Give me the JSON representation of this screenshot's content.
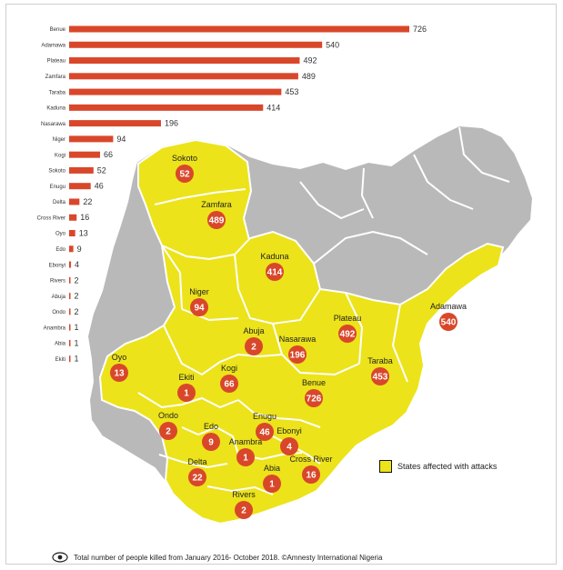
{
  "chart_data": {
    "type": "bar",
    "orientation": "horizontal",
    "categories": [
      "Benue",
      "Adamawa",
      "Plateau",
      "Zamfara",
      "Taraba",
      "Kaduna",
      "Nasarawa",
      "Niger",
      "Kogi",
      "Sokoto",
      "Enugu",
      "Delta",
      "Cross River",
      "Oyo",
      "Edo",
      "Ebonyi",
      "Rivers",
      "Abuja",
      "Ondo",
      "Anambra",
      "Abia",
      "Ekiti"
    ],
    "values": [
      726,
      540,
      492,
      489,
      453,
      414,
      196,
      94,
      66,
      52,
      46,
      22,
      16,
      13,
      9,
      4,
      2,
      2,
      2,
      1,
      1,
      1
    ],
    "xlim": [
      0,
      726
    ],
    "grid": false,
    "bar_color": "#d9472b"
  },
  "map": {
    "affected_color": "#ece31a",
    "unaffected_color": "#b9b9b9",
    "border_color": "#ffffff",
    "bubble_color": "#d9472b",
    "states": [
      {
        "name": "Sokoto",
        "value": 52
      },
      {
        "name": "Zamfara",
        "value": 489
      },
      {
        "name": "Kaduna",
        "value": 414
      },
      {
        "name": "Niger",
        "value": 94
      },
      {
        "name": "Abuja",
        "value": 2
      },
      {
        "name": "Nasarawa",
        "value": 196
      },
      {
        "name": "Plateau",
        "value": 492
      },
      {
        "name": "Adamawa",
        "value": 540
      },
      {
        "name": "Oyo",
        "value": 13
      },
      {
        "name": "Ekiti",
        "value": 1
      },
      {
        "name": "Kogi",
        "value": 66
      },
      {
        "name": "Benue",
        "value": 726
      },
      {
        "name": "Taraba",
        "value": 453
      },
      {
        "name": "Ondo",
        "value": 2
      },
      {
        "name": "Edo",
        "value": 9
      },
      {
        "name": "Enugu",
        "value": 46
      },
      {
        "name": "Ebonyi",
        "value": 4
      },
      {
        "name": "Anambra",
        "value": 1
      },
      {
        "name": "Delta",
        "value": 22
      },
      {
        "name": "Abia",
        "value": 1
      },
      {
        "name": "Cross River",
        "value": 16
      },
      {
        "name": "Rivers",
        "value": 2
      }
    ]
  },
  "legend": {
    "label": "States affected with attacks"
  },
  "caption": {
    "text": "Total number of people killed from January 2016- October 2018. ©Amnesty International Nigeria",
    "icon": "eye-icon"
  }
}
